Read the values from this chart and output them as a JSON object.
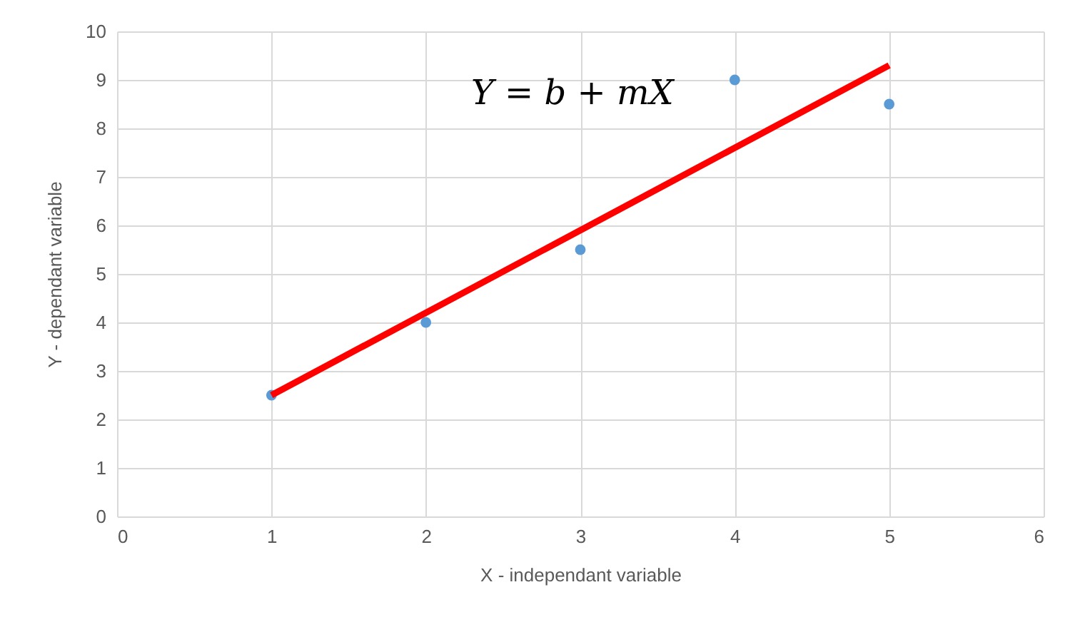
{
  "chart_data": {
    "type": "scatter",
    "xlabel": "X - independant variable",
    "ylabel": "Y - dependant variable",
    "annotations": [
      "Y = b + mX"
    ],
    "x": [
      1,
      2,
      3,
      4,
      5
    ],
    "series": [
      {
        "color": "#5b9bd5",
        "values": [
          2.5,
          4,
          5.5,
          9,
          8.5
        ]
      },
      {
        "type": "line",
        "color": "#ff0000",
        "x": [
          1,
          5
        ],
        "values": [
          2.5,
          9.3
        ]
      }
    ],
    "xlim": [
      0,
      6
    ],
    "xticks": [
      0,
      1,
      2,
      3,
      4,
      5,
      6
    ],
    "ylim": [
      0,
      10
    ],
    "yticks": [
      0,
      1,
      2,
      3,
      4,
      5,
      6,
      7,
      8,
      9,
      10
    ],
    "grid": true
  }
}
